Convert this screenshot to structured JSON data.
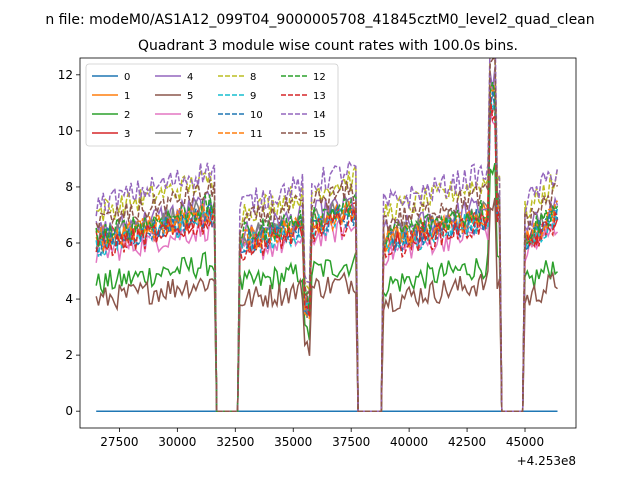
{
  "chart_data": {
    "type": "line",
    "suptitle": "n file: modeM0/AS1A12_099T04_9000005708_41845cztM0_level2_quad_clean",
    "title": "Quadrant 3 module wise count rates with 100.0s bins.",
    "xlabel": "",
    "ylabel": "",
    "x_offset_label": "+4.253e8",
    "xlim": [
      25800,
      47200
    ],
    "ylim": [
      -0.6,
      12.6
    ],
    "xticks": [
      27500,
      30000,
      32500,
      35000,
      37500,
      40000,
      42500,
      45000
    ],
    "xtick_labels": [
      "27500",
      "30000",
      "32500",
      "35000",
      "37500",
      "40000",
      "42500",
      "45000"
    ],
    "yticks": [
      0,
      2,
      4,
      6,
      8,
      10,
      12
    ],
    "ytick_labels": [
      "0",
      "2",
      "4",
      "6",
      "8",
      "10",
      "12"
    ],
    "x_step": 100,
    "gaps": [
      [
        31600,
        32700
      ],
      [
        37700,
        38900
      ],
      [
        43900,
        45000
      ]
    ],
    "edges": [
      26500,
      46400
    ],
    "spikes": [
      {
        "x": 35600,
        "factor": 0.55
      },
      {
        "x": 43600,
        "factor": 1.6
      }
    ],
    "legend": {
      "location": "top-left",
      "columns": 4
    },
    "series": [
      {
        "name": "0",
        "base": 0.0,
        "color": "#1f77b4",
        "dashed": false
      },
      {
        "name": "1",
        "base": 6.6,
        "color": "#ff7f0e",
        "dashed": false
      },
      {
        "name": "2",
        "base": 4.9,
        "color": "#2ca02c",
        "dashed": false
      },
      {
        "name": "3",
        "base": 6.5,
        "color": "#d62728",
        "dashed": false
      },
      {
        "name": "4",
        "base": 6.9,
        "color": "#9467bd",
        "dashed": false
      },
      {
        "name": "5",
        "base": 4.3,
        "color": "#8c564b",
        "dashed": false
      },
      {
        "name": "6",
        "base": 6.1,
        "color": "#e377c2",
        "dashed": false
      },
      {
        "name": "7",
        "base": 6.7,
        "color": "#7f7f7f",
        "dashed": false
      },
      {
        "name": "8",
        "base": 7.7,
        "color": "#bcbd22",
        "dashed": true
      },
      {
        "name": "9",
        "base": 6.4,
        "color": "#17becf",
        "dashed": true
      },
      {
        "name": "10",
        "base": 6.5,
        "color": "#1f77b4",
        "dashed": true
      },
      {
        "name": "11",
        "base": 6.6,
        "color": "#ff7f0e",
        "dashed": true
      },
      {
        "name": "12",
        "base": 6.8,
        "color": "#2ca02c",
        "dashed": true
      },
      {
        "name": "13",
        "base": 6.3,
        "color": "#d62728",
        "dashed": true
      },
      {
        "name": "14",
        "base": 8.0,
        "color": "#9467bd",
        "dashed": true
      },
      {
        "name": "15",
        "base": 7.3,
        "color": "#8c564b",
        "dashed": true
      }
    ]
  }
}
